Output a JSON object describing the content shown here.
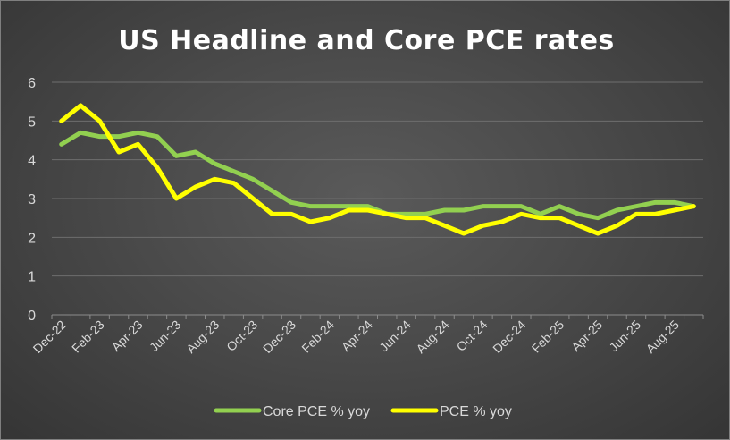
{
  "chart_data": {
    "type": "line",
    "title": "US Headline and Core PCE rates",
    "xlabel": "",
    "ylabel": "",
    "ylim": [
      0,
      6
    ],
    "yticks": [
      "0",
      "1",
      "2",
      "3",
      "4",
      "5",
      "6"
    ],
    "grid": true,
    "legend": "bottom",
    "x": [
      "Dec-22",
      "Jan-23",
      "Feb-23",
      "Mar-23",
      "Apr-23",
      "May-23",
      "Jun-23",
      "Jul-23",
      "Aug-23",
      "Sep-23",
      "Oct-23",
      "Nov-23",
      "Dec-23",
      "Jan-24",
      "Feb-24",
      "Mar-24",
      "Apr-24",
      "May-24",
      "Jun-24",
      "Jul-24",
      "Aug-24",
      "Sep-24",
      "Oct-24",
      "Nov-24",
      "Dec-24",
      "Jan-25",
      "Feb-25",
      "Mar-25",
      "Apr-25",
      "May-25",
      "Jun-25",
      "Jul-25",
      "Aug-25",
      "Sep-25"
    ],
    "xtick_labels": [
      "Dec-22",
      "Feb-23",
      "Apr-23",
      "Jun-23",
      "Aug-23",
      "Oct-23",
      "Dec-23",
      "Feb-24",
      "Apr-24",
      "Jun-24",
      "Aug-24",
      "Oct-24",
      "Dec-24",
      "Feb-25",
      "Apr-25",
      "Jun-25",
      "Aug-25"
    ],
    "series": [
      {
        "name": "Core PCE % yoy",
        "color": "#92d050",
        "values": [
          4.4,
          4.7,
          4.6,
          4.6,
          4.7,
          4.6,
          4.1,
          4.2,
          3.9,
          3.7,
          3.5,
          3.2,
          2.9,
          2.8,
          2.8,
          2.8,
          2.8,
          2.6,
          2.6,
          2.6,
          2.7,
          2.7,
          2.8,
          2.8,
          2.8,
          2.6,
          2.8,
          2.6,
          2.5,
          2.7,
          2.8,
          2.9,
          2.9,
          2.8
        ]
      },
      {
        "name": "PCE % yoy",
        "color": "#ffff00",
        "values": [
          5.0,
          5.4,
          5.0,
          4.2,
          4.4,
          3.8,
          3.0,
          3.3,
          3.5,
          3.4,
          3.0,
          2.6,
          2.6,
          2.4,
          2.5,
          2.7,
          2.7,
          2.6,
          2.5,
          2.5,
          2.3,
          2.1,
          2.3,
          2.4,
          2.6,
          2.5,
          2.5,
          2.3,
          2.1,
          2.3,
          2.6,
          2.6,
          2.7,
          2.8
        ]
      }
    ]
  }
}
